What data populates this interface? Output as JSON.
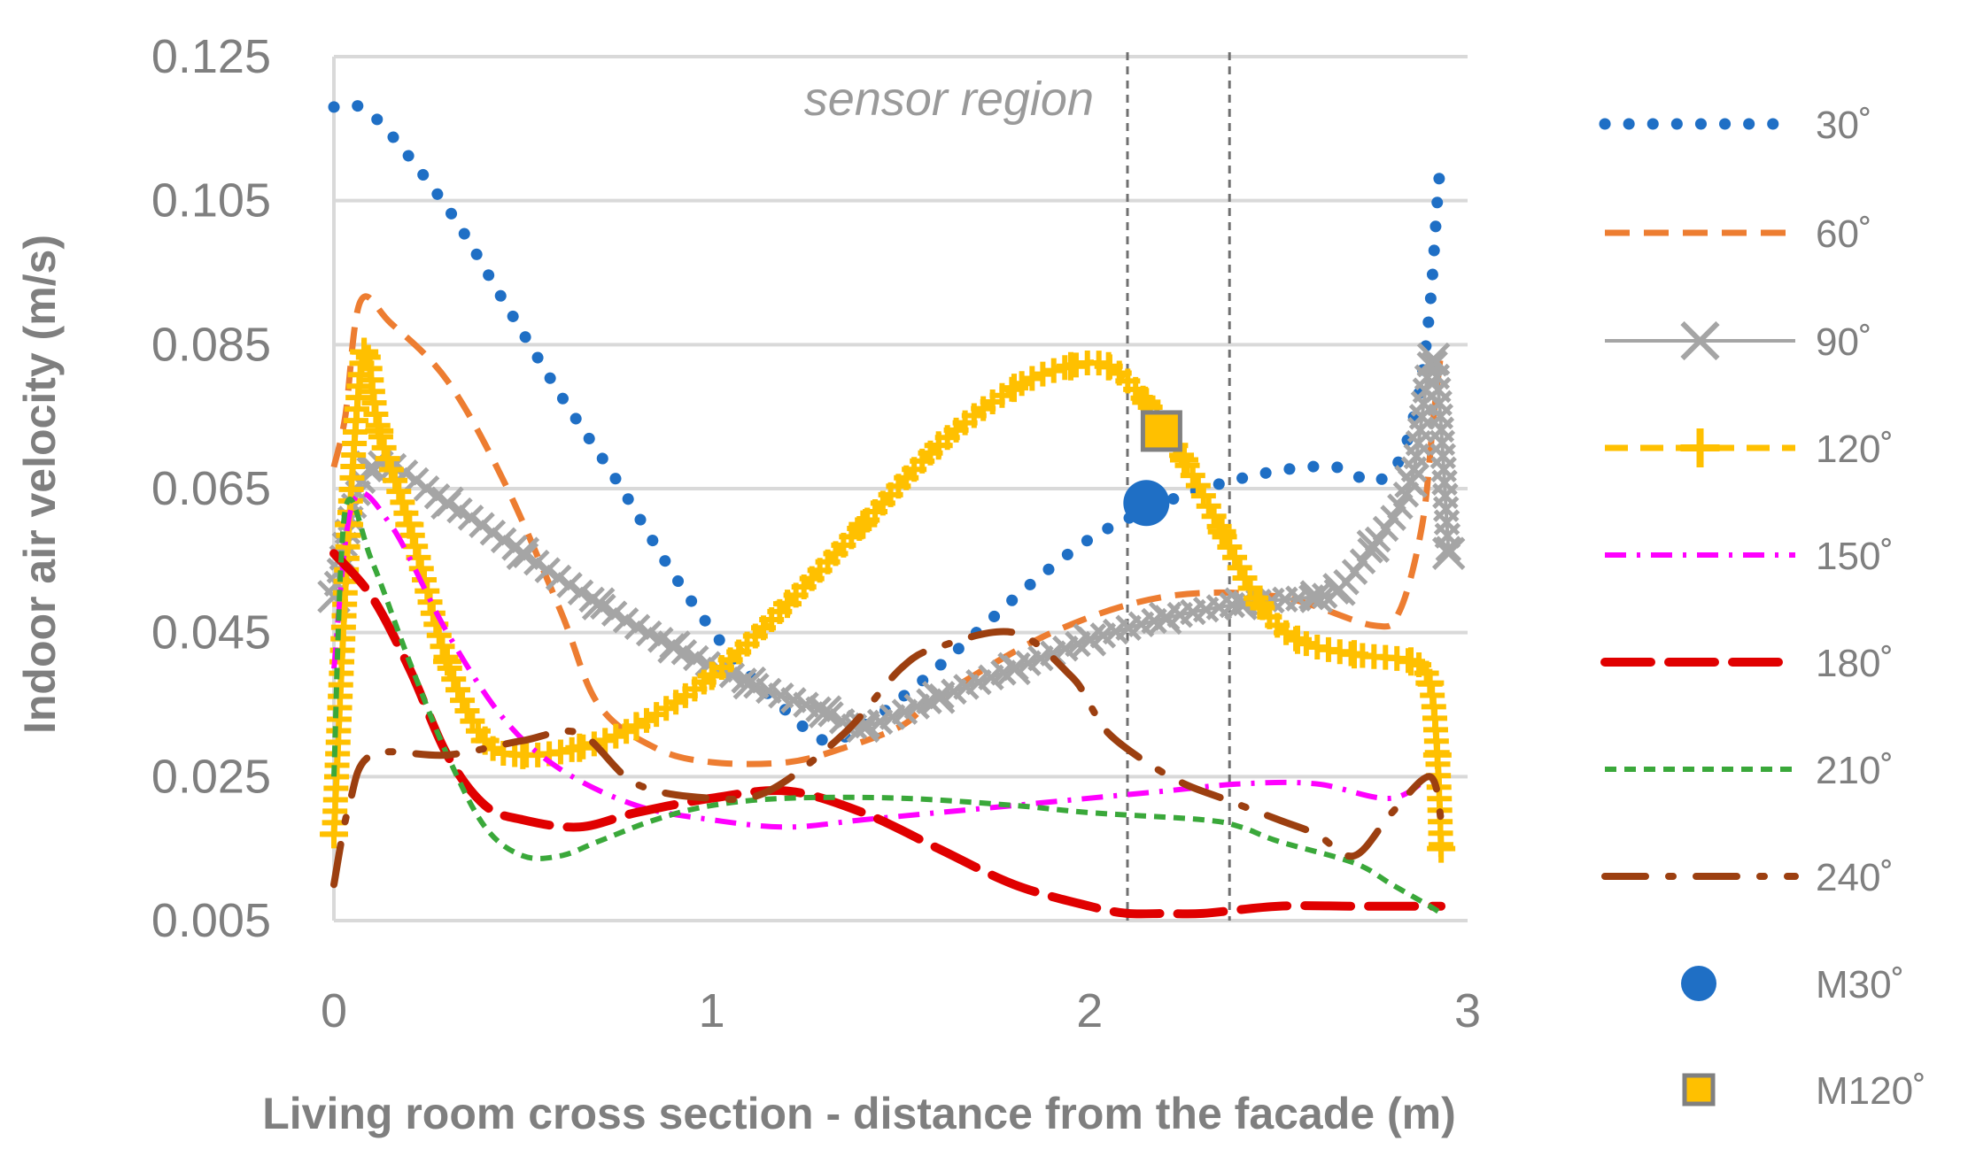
{
  "chart_data": {
    "type": "line",
    "title": "",
    "xlabel": "Living room cross section - distance from the facade (m)",
    "ylabel": "Indoor air velocity (m/s)",
    "xlim": [
      0,
      3
    ],
    "ylim": [
      0.005,
      0.125
    ],
    "x_ticks": [
      "0",
      "1",
      "2",
      "3"
    ],
    "y_ticks": [
      "0.125",
      "0.105",
      "0.085",
      "0.065",
      "0.045",
      "0.025",
      "0.005"
    ],
    "grid": "horizontal",
    "legend_position": "right",
    "annotation": {
      "text": "sensor region",
      "x_range": [
        2.1,
        2.37
      ]
    },
    "series": [
      {
        "name": "30˚",
        "color": "#1f6fc5",
        "style": "dotted",
        "points": [
          [
            0,
            0.118
          ],
          [
            0.1,
            0.117
          ],
          [
            0.3,
            0.104
          ],
          [
            0.45,
            0.091
          ],
          [
            0.6,
            0.078
          ],
          [
            0.75,
            0.066
          ],
          [
            0.9,
            0.053
          ],
          [
            1.05,
            0.042
          ],
          [
            1.2,
            0.034
          ],
          [
            1.3,
            0.03
          ],
          [
            1.4,
            0.032
          ],
          [
            1.55,
            0.038
          ],
          [
            1.7,
            0.045
          ],
          [
            1.85,
            0.052
          ],
          [
            2.0,
            0.058
          ],
          [
            2.15,
            0.062
          ],
          [
            2.3,
            0.065
          ],
          [
            2.5,
            0.0675
          ],
          [
            2.65,
            0.068
          ],
          [
            2.75,
            0.066
          ],
          [
            2.82,
            0.069
          ],
          [
            2.87,
            0.078
          ],
          [
            2.9,
            0.09
          ],
          [
            2.92,
            0.105
          ],
          [
            2.93,
            0.111
          ]
        ]
      },
      {
        "name": "60˚",
        "color": "#ed7d31",
        "style": "dashed",
        "points": [
          [
            0,
            0.068
          ],
          [
            0.03,
            0.075
          ],
          [
            0.07,
            0.091
          ],
          [
            0.15,
            0.088
          ],
          [
            0.3,
            0.08
          ],
          [
            0.45,
            0.066
          ],
          [
            0.6,
            0.048
          ],
          [
            0.7,
            0.035
          ],
          [
            0.85,
            0.029
          ],
          [
            1.0,
            0.027
          ],
          [
            1.2,
            0.027
          ],
          [
            1.35,
            0.029
          ],
          [
            1.5,
            0.032
          ],
          [
            1.6,
            0.036
          ],
          [
            1.9,
            0.045
          ],
          [
            2.2,
            0.05
          ],
          [
            2.5,
            0.05
          ],
          [
            2.75,
            0.046
          ],
          [
            2.82,
            0.048
          ],
          [
            2.88,
            0.06
          ],
          [
            2.91,
            0.075
          ],
          [
            2.93,
            0.084
          ]
        ]
      },
      {
        "name": "90˚",
        "color": "#a5a5a5",
        "style": "solid-x",
        "points": [
          [
            0,
            0.05
          ],
          [
            0.1,
            0.068
          ],
          [
            0.3,
            0.063
          ],
          [
            0.5,
            0.056
          ],
          [
            0.7,
            0.049
          ],
          [
            0.9,
            0.043
          ],
          [
            1.1,
            0.038
          ],
          [
            1.3,
            0.034
          ],
          [
            1.4,
            0.032
          ],
          [
            1.6,
            0.036
          ],
          [
            1.8,
            0.04
          ],
          [
            2.0,
            0.044
          ],
          [
            2.2,
            0.047
          ],
          [
            2.4,
            0.049
          ],
          [
            2.6,
            0.05
          ],
          [
            2.66,
            0.051
          ],
          [
            2.75,
            0.057
          ],
          [
            2.85,
            0.066
          ],
          [
            2.91,
            0.083
          ],
          [
            2.95,
            0.056
          ]
        ]
      },
      {
        "name": "120˚",
        "color": "#ffc000",
        "style": "dashed-plus",
        "points": [
          [
            0,
            0.017
          ],
          [
            0.04,
            0.06
          ],
          [
            0.08,
            0.084
          ],
          [
            0.12,
            0.073
          ],
          [
            0.2,
            0.06
          ],
          [
            0.3,
            0.041
          ],
          [
            0.4,
            0.03
          ],
          [
            0.5,
            0.028
          ],
          [
            0.65,
            0.029
          ],
          [
            0.8,
            0.032
          ],
          [
            1.0,
            0.039
          ],
          [
            1.2,
            0.049
          ],
          [
            1.4,
            0.06
          ],
          [
            1.6,
            0.071
          ],
          [
            1.8,
            0.079
          ],
          [
            1.95,
            0.082
          ],
          [
            2.05,
            0.082
          ],
          [
            2.15,
            0.077
          ],
          [
            2.25,
            0.069
          ],
          [
            2.35,
            0.059
          ],
          [
            2.45,
            0.049
          ],
          [
            2.55,
            0.044
          ],
          [
            2.7,
            0.042
          ],
          [
            2.85,
            0.041
          ],
          [
            2.9,
            0.038
          ],
          [
            2.92,
            0.028
          ],
          [
            2.93,
            0.015
          ]
        ]
      },
      {
        "name": "150˚",
        "color": "#ff00ff",
        "style": "dash-dot",
        "points": [
          [
            0,
            0.04
          ],
          [
            0.05,
            0.063
          ],
          [
            0.15,
            0.06
          ],
          [
            0.3,
            0.045
          ],
          [
            0.45,
            0.033
          ],
          [
            0.6,
            0.026
          ],
          [
            0.8,
            0.021
          ],
          [
            1.0,
            0.019
          ],
          [
            1.2,
            0.018
          ],
          [
            1.4,
            0.019
          ],
          [
            1.6,
            0.02
          ],
          [
            1.8,
            0.021
          ],
          [
            2.0,
            0.022
          ],
          [
            2.2,
            0.023
          ],
          [
            2.4,
            0.024
          ],
          [
            2.6,
            0.024
          ],
          [
            2.8,
            0.022
          ],
          [
            2.92,
            0.026
          ]
        ]
      },
      {
        "name": "180˚",
        "color": "#e00000",
        "style": "long-dash",
        "points": [
          [
            0,
            0.056
          ],
          [
            0.1,
            0.05
          ],
          [
            0.2,
            0.04
          ],
          [
            0.3,
            0.028
          ],
          [
            0.4,
            0.021
          ],
          [
            0.5,
            0.019
          ],
          [
            0.65,
            0.018
          ],
          [
            0.8,
            0.02
          ],
          [
            1.0,
            0.022
          ],
          [
            1.2,
            0.023
          ],
          [
            1.4,
            0.02
          ],
          [
            1.6,
            0.015
          ],
          [
            1.8,
            0.01
          ],
          [
            2.0,
            0.007
          ],
          [
            2.1,
            0.006
          ],
          [
            2.2,
            0.006
          ],
          [
            2.3,
            0.006
          ],
          [
            2.5,
            0.007
          ],
          [
            2.7,
            0.007
          ],
          [
            2.9,
            0.007
          ],
          [
            2.93,
            0.007
          ]
        ]
      },
      {
        "name": "210˚",
        "color": "#3aa83a",
        "style": "short-dash",
        "points": [
          [
            0,
            0.025
          ],
          [
            0.03,
            0.062
          ],
          [
            0.1,
            0.055
          ],
          [
            0.2,
            0.041
          ],
          [
            0.3,
            0.028
          ],
          [
            0.4,
            0.018
          ],
          [
            0.5,
            0.014
          ],
          [
            0.6,
            0.014
          ],
          [
            0.7,
            0.016
          ],
          [
            0.85,
            0.019
          ],
          [
            1.0,
            0.021
          ],
          [
            1.2,
            0.022
          ],
          [
            1.5,
            0.022
          ],
          [
            1.8,
            0.021
          ],
          [
            2.0,
            0.02
          ],
          [
            2.3,
            0.019
          ],
          [
            2.4,
            0.018
          ],
          [
            2.5,
            0.016
          ],
          [
            2.7,
            0.013
          ],
          [
            2.8,
            0.01
          ],
          [
            2.9,
            0.007
          ],
          [
            2.93,
            0.006
          ]
        ]
      },
      {
        "name": "240˚",
        "color": "#9c3f10",
        "style": "dash-dot-long",
        "points": [
          [
            0,
            0.01
          ],
          [
            0.04,
            0.021
          ],
          [
            0.1,
            0.028
          ],
          [
            0.3,
            0.028
          ],
          [
            0.5,
            0.03
          ],
          [
            0.65,
            0.031
          ],
          [
            0.8,
            0.024
          ],
          [
            1.0,
            0.022
          ],
          [
            1.15,
            0.023
          ],
          [
            1.35,
            0.031
          ],
          [
            1.5,
            0.04
          ],
          [
            1.6,
            0.043
          ],
          [
            1.8,
            0.045
          ],
          [
            1.95,
            0.039
          ],
          [
            2.0,
            0.035
          ],
          [
            2.05,
            0.031
          ],
          [
            2.15,
            0.027
          ],
          [
            2.25,
            0.024
          ],
          [
            2.35,
            0.022
          ],
          [
            2.5,
            0.019
          ],
          [
            2.6,
            0.017
          ],
          [
            2.7,
            0.014
          ],
          [
            2.8,
            0.02
          ],
          [
            2.9,
            0.025
          ],
          [
            2.93,
            0.019
          ]
        ]
      }
    ],
    "markers": [
      {
        "name": "M30˚",
        "x": 2.15,
        "y": 0.063,
        "shape": "circle",
        "color": "#1f6fc5"
      },
      {
        "name": "M120˚",
        "x": 2.19,
        "y": 0.073,
        "shape": "square",
        "color": "#ffc000",
        "stroke": "#808080"
      }
    ]
  }
}
